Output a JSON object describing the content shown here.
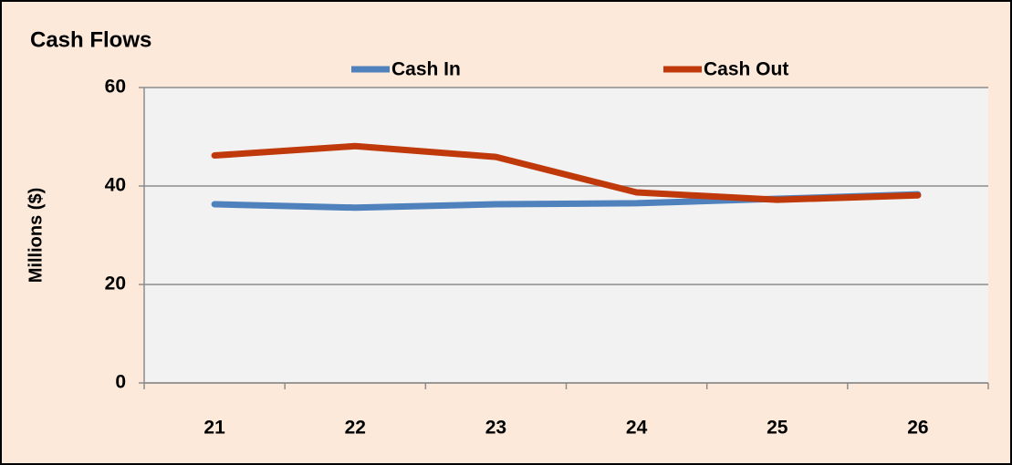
{
  "chart_data": {
    "type": "line",
    "title": "Cash Flows",
    "y_label": "Millions ($)",
    "categories": [
      "21",
      "22",
      "23",
      "24",
      "25",
      "26"
    ],
    "series": [
      {
        "name": "Cash In",
        "color": "#4f81bd",
        "values": [
          36.3,
          35.6,
          36.3,
          36.5,
          37.4,
          38.3
        ]
      },
      {
        "name": "Cash Out",
        "color": "#c0390b",
        "values": [
          46.2,
          48.1,
          45.9,
          38.7,
          37.2,
          38.1
        ]
      }
    ],
    "ylim": [
      0,
      60
    ],
    "yticks": [
      0,
      20,
      40,
      60
    ],
    "grid": true,
    "legend": "top"
  }
}
